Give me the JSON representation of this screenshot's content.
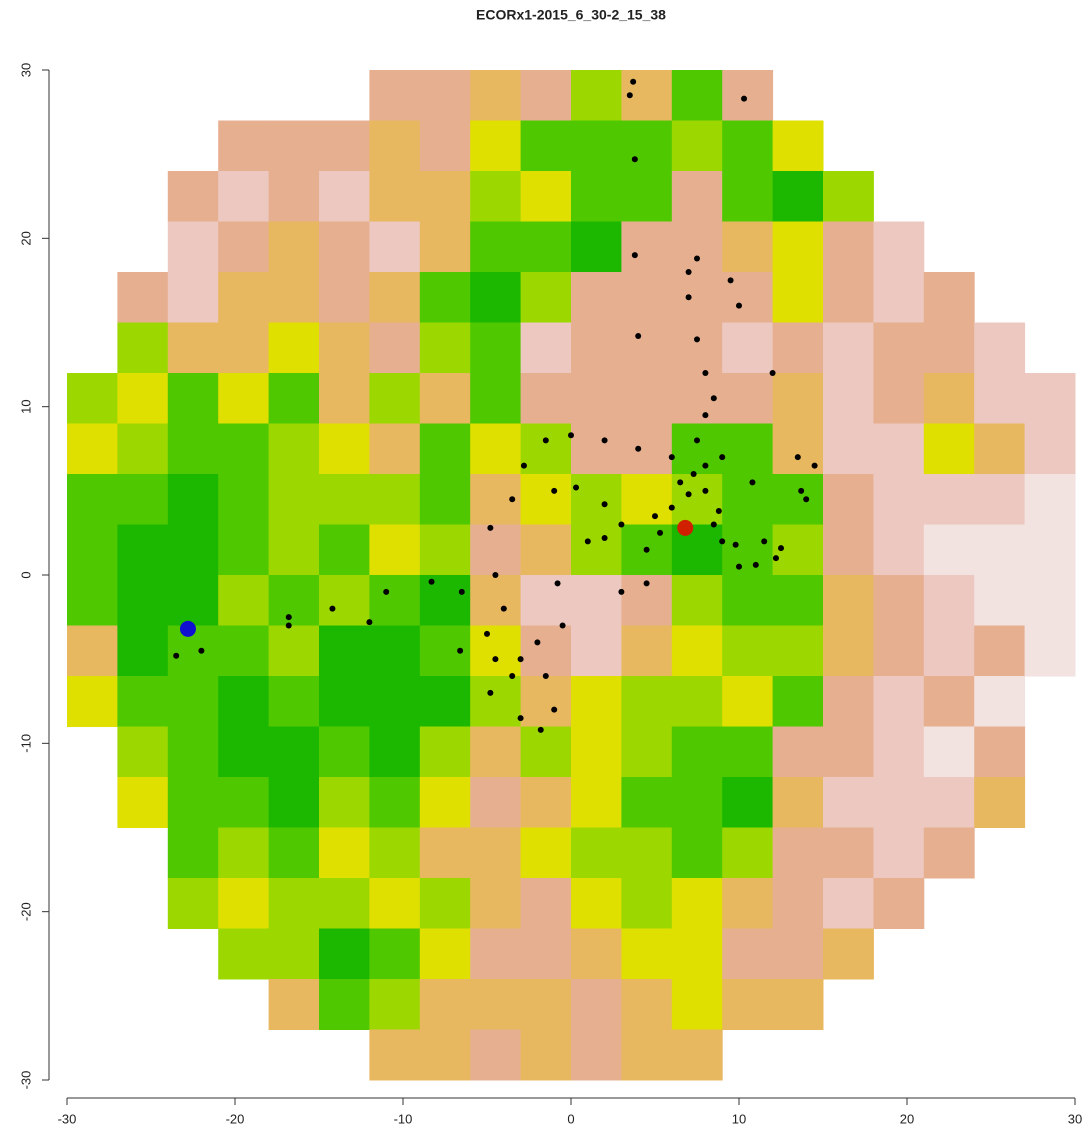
{
  "chart_data": {
    "type": "raster",
    "title": "ECORx1-2015_6_30-2_15_38",
    "xlim": [
      -30,
      30
    ],
    "ylim": [
      -30,
      30
    ],
    "xticks": [
      -30,
      -20,
      -10,
      0,
      10,
      20,
      30
    ],
    "yticks": [
      -30,
      -20,
      -10,
      0,
      10,
      20,
      30
    ],
    "palette": [
      "#1cb800",
      "#4fc800",
      "#9cd800",
      "#dfdf00",
      "#e8b860",
      "#e6b090",
      "#ecc8c0",
      "#f2e2e0"
    ],
    "raster": [
      [
        null,
        null,
        null,
        null,
        null,
        null,
        6,
        6,
        5,
        6,
        3,
        5,
        2,
        6,
        null,
        null,
        null,
        null,
        null,
        null
      ],
      [
        null,
        null,
        null,
        6,
        6,
        6,
        5,
        6,
        4,
        2,
        2,
        2,
        3,
        2,
        4,
        null,
        null,
        null,
        null,
        null
      ],
      [
        null,
        null,
        6,
        7,
        6,
        7,
        5,
        5,
        3,
        4,
        2,
        2,
        6,
        2,
        1,
        3,
        null,
        null,
        null,
        null
      ],
      [
        null,
        null,
        7,
        6,
        5,
        6,
        7,
        5,
        2,
        2,
        1,
        6,
        6,
        5,
        4,
        6,
        7,
        null,
        null,
        null
      ],
      [
        null,
        6,
        7,
        5,
        5,
        6,
        5,
        2,
        1,
        3,
        6,
        6,
        6,
        6,
        4,
        6,
        7,
        6,
        null,
        null
      ],
      [
        null,
        3,
        5,
        5,
        4,
        5,
        6,
        3,
        2,
        7,
        6,
        6,
        6,
        7,
        6,
        7,
        6,
        6,
        7,
        null
      ],
      [
        3,
        4,
        2,
        4,
        2,
        5,
        3,
        5,
        2,
        6,
        6,
        6,
        6,
        6,
        5,
        7,
        6,
        5,
        7,
        7
      ],
      [
        4,
        3,
        2,
        2,
        3,
        4,
        5,
        2,
        4,
        3,
        6,
        6,
        2,
        2,
        5,
        7,
        7,
        4,
        5,
        7
      ],
      [
        2,
        2,
        1,
        2,
        3,
        3,
        3,
        2,
        5,
        4,
        3,
        4,
        3,
        2,
        2,
        6,
        7,
        7,
        7,
        8
      ],
      [
        2,
        1,
        1,
        2,
        3,
        2,
        4,
        3,
        6,
        5,
        3,
        2,
        1,
        2,
        3,
        6,
        7,
        8,
        8,
        8
      ],
      [
        2,
        1,
        1,
        3,
        2,
        3,
        2,
        1,
        5,
        7,
        7,
        6,
        3,
        2,
        2,
        5,
        6,
        7,
        8,
        8
      ],
      [
        5,
        1,
        2,
        2,
        3,
        1,
        1,
        2,
        4,
        6,
        7,
        5,
        4,
        3,
        3,
        5,
        6,
        7,
        6,
        8
      ],
      [
        4,
        2,
        2,
        1,
        2,
        1,
        1,
        1,
        3,
        5,
        4,
        3,
        3,
        4,
        2,
        6,
        7,
        6,
        8,
        null
      ],
      [
        null,
        3,
        2,
        1,
        1,
        2,
        1,
        3,
        5,
        3,
        4,
        3,
        2,
        2,
        6,
        6,
        7,
        8,
        6,
        null
      ],
      [
        null,
        4,
        2,
        2,
        1,
        3,
        2,
        4,
        6,
        5,
        4,
        2,
        2,
        1,
        5,
        7,
        7,
        7,
        5,
        null
      ],
      [
        null,
        null,
        2,
        3,
        2,
        4,
        3,
        5,
        5,
        4,
        3,
        3,
        2,
        3,
        6,
        6,
        7,
        6,
        null,
        null
      ],
      [
        null,
        null,
        3,
        4,
        3,
        3,
        4,
        3,
        5,
        6,
        4,
        3,
        4,
        5,
        6,
        7,
        6,
        null,
        null,
        null
      ],
      [
        null,
        null,
        null,
        3,
        3,
        1,
        2,
        4,
        6,
        6,
        5,
        4,
        4,
        6,
        6,
        5,
        null,
        null,
        null,
        null
      ],
      [
        null,
        null,
        null,
        null,
        5,
        2,
        3,
        5,
        5,
        5,
        6,
        5,
        4,
        5,
        5,
        null,
        null,
        null,
        null,
        null
      ],
      [
        null,
        null,
        null,
        null,
        null,
        null,
        5,
        5,
        6,
        5,
        6,
        5,
        5,
        null,
        null,
        null,
        null,
        null,
        null,
        null
      ]
    ],
    "series": [
      {
        "color": "#000000",
        "x": [
          -23.5,
          -22,
          -16.8,
          -16.8,
          -14.2,
          -12,
          -11,
          -8.3,
          -6.5,
          -6.6,
          -5,
          -4.8,
          -4.5,
          -3.5,
          -3,
          -2,
          -1.5,
          -1.8,
          -1,
          -4.5,
          -4.8,
          -3.5,
          -2.8,
          -1.5,
          0,
          2,
          4,
          6,
          7.5,
          8,
          8.5,
          8,
          7.5,
          4,
          7,
          7,
          7.5,
          9.5,
          10,
          3.8,
          3.8,
          3.5,
          3.7,
          10.3,
          12,
          5,
          6,
          7,
          8,
          8.5,
          9,
          10,
          11,
          12.5,
          12.2,
          11.5,
          9.8,
          2,
          0.3,
          -1,
          3,
          4.5,
          3,
          4.5,
          -0.8,
          -0.5,
          -4,
          -3,
          13.5,
          14.5,
          13.7,
          14,
          8,
          7.3,
          9,
          6.5,
          1,
          2,
          5.3,
          8.8,
          10.8
        ],
        "values": [
          -4.8,
          -4.5,
          -2.5,
          -3,
          -2,
          -2.8,
          -1,
          -0.4,
          -1,
          -4.5,
          -3.5,
          -7,
          -5,
          -6,
          -8.5,
          -4,
          -6,
          -9.2,
          -8,
          0,
          2.8,
          4.5,
          6.5,
          8,
          8.3,
          8,
          7.5,
          7,
          8,
          9.5,
          10.5,
          12,
          14,
          14.2,
          16.5,
          18,
          18.8,
          17.5,
          16,
          19,
          24.7,
          28.5,
          29.3,
          28.3,
          12,
          3.5,
          4,
          4.8,
          5,
          3,
          2,
          0.5,
          0.6,
          1.6,
          1,
          2,
          1.8,
          4.2,
          5.2,
          5,
          3,
          1.5,
          -1,
          -0.5,
          -0.5,
          -3,
          -2,
          -5,
          7,
          6.5,
          5,
          4.5,
          6.5,
          6,
          7,
          5.5,
          2,
          2.2,
          2.5,
          3.8,
          5.5
        ]
      },
      {
        "color": "#1010d0",
        "x": [
          -22.8
        ],
        "values": [
          -3.2
        ]
      },
      {
        "color": "#d02000",
        "x": [
          6.8
        ],
        "values": [
          2.8
        ]
      }
    ]
  }
}
